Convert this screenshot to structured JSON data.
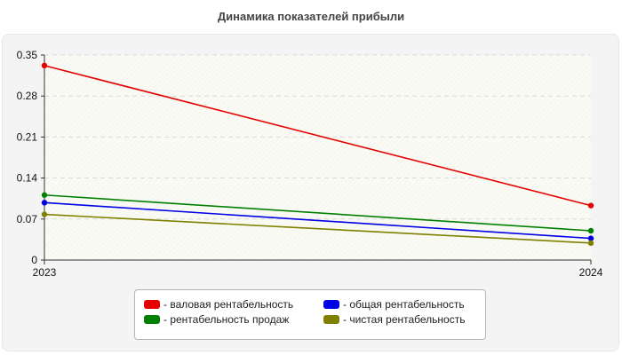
{
  "chart_data": {
    "type": "line",
    "title": "Динамика показателей прибыли",
    "xlabel": "",
    "ylabel": "",
    "x": [
      "2023",
      "2024"
    ],
    "ylim": [
      0,
      0.35
    ],
    "yticks": [
      "0",
      "0.07",
      "0.14",
      "0.21",
      "0.28",
      "0.35"
    ],
    "grid": true,
    "legend_position": "bottom",
    "series": [
      {
        "name": "- валовая рентабельность",
        "color": "#e60000",
        "values": [
          0.332,
          0.093
        ]
      },
      {
        "name": "- общая рентабельность",
        "color": "#0000e6",
        "values": [
          0.098,
          0.037
        ]
      },
      {
        "name": "- рентабельность продаж",
        "color": "#008000",
        "values": [
          0.111,
          0.05
        ]
      },
      {
        "name": "- чистая рентабельность",
        "color": "#808000",
        "values": [
          0.078,
          0.029
        ]
      }
    ]
  }
}
